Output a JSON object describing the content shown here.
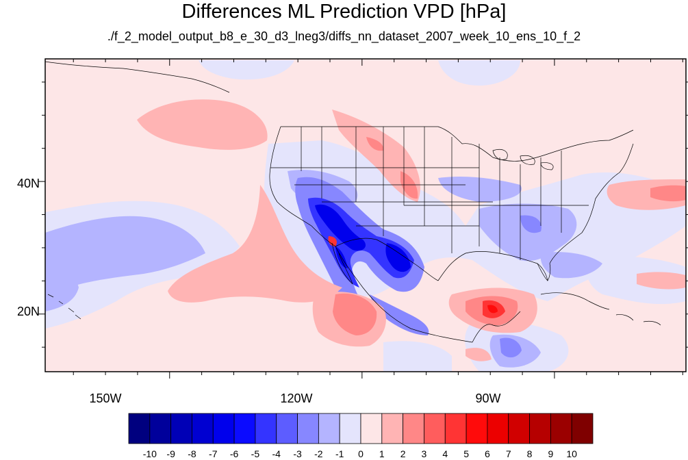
{
  "title": "Differences ML Prediction VPD [hPa]",
  "subtitle": "./f_2_model_output_b8_e_30_d3_lneg3/diffs_nn_dataset_2007_week_10_ens_10_f_2",
  "map": {
    "lon_range": [
      -169.4,
      -69.5
    ],
    "lat_range": [
      11.3,
      58.5
    ],
    "x_ticks": [
      {
        "lon": -150,
        "label": "150W"
      },
      {
        "lon": -120,
        "label": "120W"
      },
      {
        "lon": -90,
        "label": "90W"
      }
    ],
    "y_ticks": [
      {
        "lat": 40,
        "label": "40N"
      },
      {
        "lat": 20,
        "label": "20N"
      }
    ],
    "background_color": "#fde6e7"
  },
  "colorbar": {
    "labels": [
      "-10",
      "-9",
      "-8",
      "-7",
      "-6",
      "-5",
      "-4",
      "-3",
      "-2",
      "-1",
      "0",
      "1",
      "2",
      "3",
      "4",
      "5",
      "6",
      "7",
      "8",
      "9",
      "10"
    ],
    "colors": [
      "#00007f",
      "#00009b",
      "#0000b6",
      "#0000d1",
      "#0000ec",
      "#0b0bff",
      "#3434ff",
      "#5d5dff",
      "#8787ff",
      "#b4b4ff",
      "#e4e4fc",
      "#fde6e7",
      "#ffb4b4",
      "#ff8787",
      "#ff5d5d",
      "#ff3434",
      "#ff0b0b",
      "#ec0000",
      "#d10000",
      "#b60000",
      "#9b0000",
      "#7f0000"
    ]
  }
}
